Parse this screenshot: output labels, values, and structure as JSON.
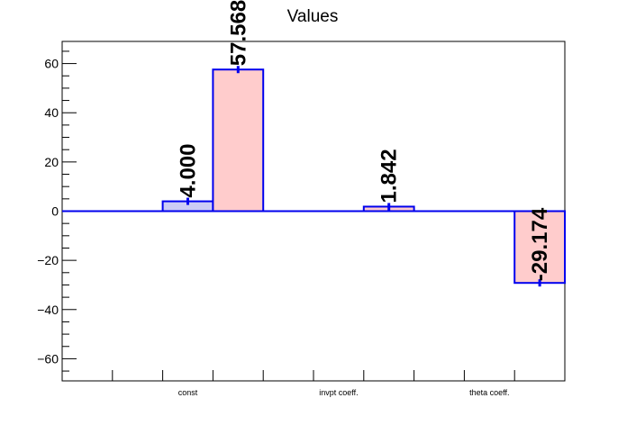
{
  "chart_data": {
    "type": "bar",
    "title": "Values",
    "categories": [
      "const",
      "invpt coeff.",
      "theta coeff."
    ],
    "ylim": [
      -69,
      69
    ],
    "yticks": [
      -60,
      -40,
      -20,
      0,
      20,
      40,
      60
    ],
    "grid": false,
    "series": [
      {
        "values": [
          4.0,
          0,
          0
        ],
        "labels": [
          "4.000",
          "",
          ""
        ],
        "fill": "#ccccf5",
        "stroke": "#0000ee"
      },
      {
        "values": [
          57.568,
          1.842,
          -29.174
        ],
        "labels": [
          "57.568",
          "1.842",
          "-29.174"
        ],
        "fill": "#ffcccc",
        "stroke": "#0000ee"
      }
    ]
  }
}
